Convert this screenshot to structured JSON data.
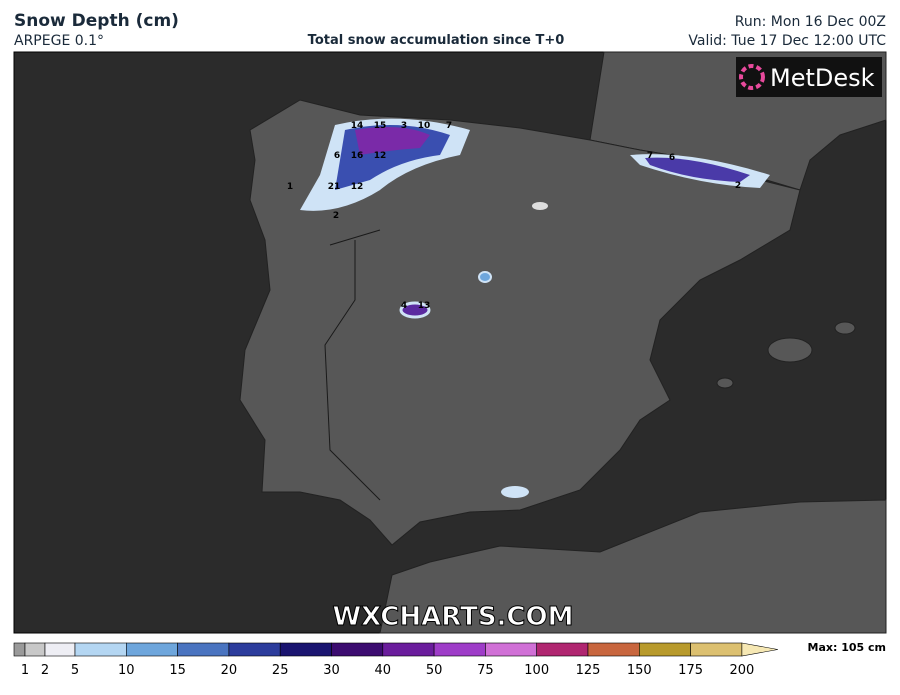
{
  "header": {
    "title": "Snow Depth (cm)",
    "model": "ARPEGE 0.1°",
    "subtitle": "Total snow accumulation since T+0",
    "run": "Run: Mon 16 Dec 00Z",
    "valid": "Valid: Tue 17 Dec 12:00 UTC"
  },
  "logo": "MetDesk",
  "watermark": "WXCHARTS.COM",
  "map_labels": [
    "14",
    "15",
    "3",
    "10",
    "7",
    "6",
    "16",
    "12",
    "21",
    "12",
    "1",
    "2",
    "4",
    "13",
    "7",
    "6",
    "2"
  ],
  "legend": {
    "ticks": [
      1,
      2,
      5,
      10,
      15,
      20,
      25,
      30,
      40,
      50,
      75,
      100,
      125,
      150,
      175,
      200
    ],
    "colors": [
      "#9a9a9a",
      "#c8c8c8",
      "#eeeef4",
      "#b4d6f2",
      "#6ea6dc",
      "#4a74c0",
      "#2c3c9c",
      "#1a1470",
      "#3c0c70",
      "#6a1c9c",
      "#9e3cc8",
      "#d070d6",
      "#b02670",
      "#c8663e",
      "#b89a2c",
      "#dcc070",
      "#f6e8b4"
    ],
    "max": "Max: 105 cm"
  }
}
